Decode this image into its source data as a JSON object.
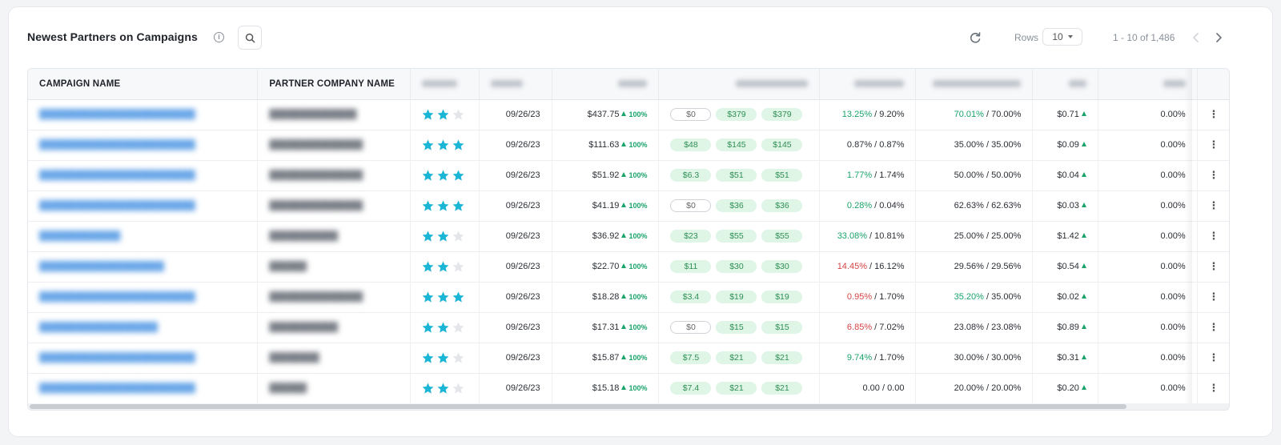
{
  "header": {
    "title": "Newest Partners on Campaigns",
    "info_icon": "info-icon",
    "search_icon": "search-icon",
    "refresh_icon": "refresh-icon",
    "rows_label": "Rows",
    "rows_value": "10",
    "range_text": "1 - 10 of 1,486",
    "prev_icon": "chevron-left-icon",
    "next_icon": "chevron-right-icon"
  },
  "columns": {
    "campaign_name": "CAMPAIGN NAME",
    "partner_company_name": "PARTNER COMPANY NAME"
  },
  "colors": {
    "accent_star": "#1bb5d6",
    "positive": "#1aa36a",
    "negative": "#d64545",
    "link": "#6aa7e8"
  },
  "rows": [
    {
      "stars": 2,
      "date": "09/26/23",
      "amount": "$437.75",
      "pct": "100%",
      "p1": "$0",
      "p1_zero": true,
      "p2": "$379",
      "p3": "$379",
      "rate_a": "13.25%",
      "rate_a_class": "g",
      "rate_b": "9.20%",
      "share_a": "70.01%",
      "share_a_class": "g",
      "share_b": "70.00%",
      "cost": "$0.71",
      "last": "0.00%"
    },
    {
      "stars": 3,
      "date": "09/26/23",
      "amount": "$111.63",
      "pct": "100%",
      "p1": "$48",
      "p1_zero": false,
      "p2": "$145",
      "p3": "$145",
      "rate_a": "0.87%",
      "rate_a_class": "",
      "rate_b": "0.87%",
      "share_a": "35.00%",
      "share_a_class": "",
      "share_b": "35.00%",
      "cost": "$0.09",
      "last": "0.00%"
    },
    {
      "stars": 3,
      "date": "09/26/23",
      "amount": "$51.92",
      "pct": "100%",
      "p1": "$6.3",
      "p1_zero": false,
      "p2": "$51",
      "p3": "$51",
      "rate_a": "1.77%",
      "rate_a_class": "g",
      "rate_b": "1.74%",
      "share_a": "50.00%",
      "share_a_class": "",
      "share_b": "50.00%",
      "cost": "$0.04",
      "last": "0.00%"
    },
    {
      "stars": 3,
      "date": "09/26/23",
      "amount": "$41.19",
      "pct": "100%",
      "p1": "$0",
      "p1_zero": true,
      "p2": "$36",
      "p3": "$36",
      "rate_a": "0.28%",
      "rate_a_class": "g",
      "rate_b": "0.04%",
      "share_a": "62.63%",
      "share_a_class": "",
      "share_b": "62.63%",
      "cost": "$0.03",
      "last": "0.00%"
    },
    {
      "stars": 2,
      "date": "09/26/23",
      "amount": "$36.92",
      "pct": "100%",
      "p1": "$23",
      "p1_zero": false,
      "p2": "$55",
      "p3": "$55",
      "rate_a": "33.08%",
      "rate_a_class": "g",
      "rate_b": "10.81%",
      "share_a": "25.00%",
      "share_a_class": "",
      "share_b": "25.00%",
      "cost": "$1.42",
      "last": "0.00%"
    },
    {
      "stars": 2,
      "date": "09/26/23",
      "amount": "$22.70",
      "pct": "100%",
      "p1": "$11",
      "p1_zero": false,
      "p2": "$30",
      "p3": "$30",
      "rate_a": "14.45%",
      "rate_a_class": "r",
      "rate_b": "16.12%",
      "share_a": "29.56%",
      "share_a_class": "",
      "share_b": "29.56%",
      "cost": "$0.54",
      "last": "0.00%"
    },
    {
      "stars": 3,
      "date": "09/26/23",
      "amount": "$18.28",
      "pct": "100%",
      "p1": "$3.4",
      "p1_zero": false,
      "p2": "$19",
      "p3": "$19",
      "rate_a": "0.95%",
      "rate_a_class": "r",
      "rate_b": "1.70%",
      "share_a": "35.20%",
      "share_a_class": "g",
      "share_b": "35.00%",
      "cost": "$0.02",
      "last": "0.00%"
    },
    {
      "stars": 2,
      "date": "09/26/23",
      "amount": "$17.31",
      "pct": "100%",
      "p1": "$0",
      "p1_zero": true,
      "p2": "$15",
      "p3": "$15",
      "rate_a": "6.85%",
      "rate_a_class": "r",
      "rate_b": "7.02%",
      "share_a": "23.08%",
      "share_a_class": "",
      "share_b": "23.08%",
      "cost": "$0.89",
      "last": "0.00%"
    },
    {
      "stars": 2,
      "date": "09/26/23",
      "amount": "$15.87",
      "pct": "100%",
      "p1": "$7.5",
      "p1_zero": false,
      "p2": "$21",
      "p3": "$21",
      "rate_a": "9.74%",
      "rate_a_class": "g",
      "rate_b": "1.70%",
      "share_a": "30.00%",
      "share_a_class": "",
      "share_b": "30.00%",
      "cost": "$0.31",
      "last": "0.00%"
    },
    {
      "stars": 2,
      "date": "09/26/23",
      "amount": "$15.18",
      "pct": "100%",
      "p1": "$7.4",
      "p1_zero": false,
      "p2": "$21",
      "p3": "$21",
      "rate_a": "0.00",
      "rate_a_class": "",
      "rate_b": "0.00",
      "share_a": "20.00%",
      "share_a_class": "",
      "share_b": "20.00%",
      "cost": "$0.20",
      "last": "0.00%"
    }
  ]
}
